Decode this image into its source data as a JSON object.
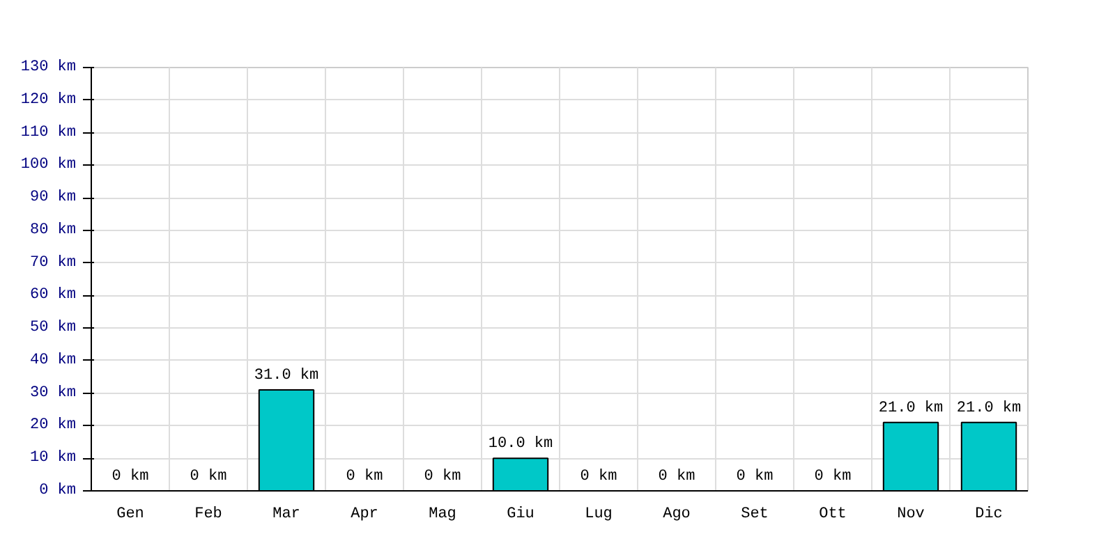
{
  "chart_data": {
    "type": "bar",
    "categories": [
      "Gen",
      "Feb",
      "Mar",
      "Apr",
      "Mag",
      "Giu",
      "Lug",
      "Ago",
      "Set",
      "Ott",
      "Nov",
      "Dic"
    ],
    "values": [
      0,
      0,
      31.0,
      0,
      0,
      10.0,
      0,
      0,
      0,
      0,
      21.0,
      21.0
    ],
    "value_labels": [
      "0 km",
      "0 km",
      "31.0 km",
      "0 km",
      "0 km",
      "10.0 km",
      "0 km",
      "0 km",
      "0 km",
      "0 km",
      "21.0 km",
      "21.0 km"
    ],
    "color": "#00c8c8",
    "ylim": [
      0,
      130
    ],
    "yticks": [
      {
        "value": 0,
        "label": "0 km"
      },
      {
        "value": 10,
        "label": "10 km"
      },
      {
        "value": 20,
        "label": "20 km"
      },
      {
        "value": 30,
        "label": "30 km"
      },
      {
        "value": 40,
        "label": "40 km"
      },
      {
        "value": 50,
        "label": "50 km"
      },
      {
        "value": 60,
        "label": "60 km"
      },
      {
        "value": 70,
        "label": "70 km"
      },
      {
        "value": 80,
        "label": "80 km"
      },
      {
        "value": 90,
        "label": "90 km"
      },
      {
        "value": 100,
        "label": "100 km"
      },
      {
        "value": 110,
        "label": "110 km"
      },
      {
        "value": 120,
        "label": "120 km"
      },
      {
        "value": 130,
        "label": "130 km"
      }
    ],
    "grid": true
  }
}
